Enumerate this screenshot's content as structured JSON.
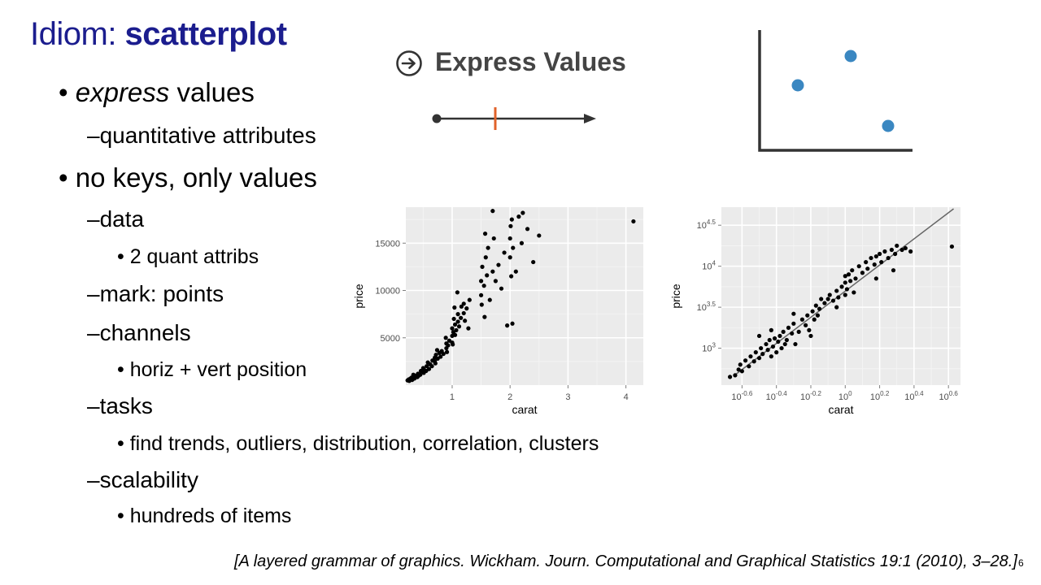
{
  "slide": {
    "title_prefix": "Idiom: ",
    "title_bold": "scatterplot",
    "bullets": [
      {
        "emph": "express",
        "rest": " values"
      },
      {
        "text": "no keys, only values"
      }
    ],
    "sub": {
      "quant": "–quantitative attributes",
      "data": "–data",
      "data_item": "• 2 quant attribs",
      "mark": "–mark: points",
      "channels": "–channels",
      "channels_item": "• horiz + vert position",
      "tasks": "–tasks",
      "tasks_item": "• find trends, outliers, distribution, correlation, clusters",
      "scalability": "–scalability",
      "scalability_item": "• hundreds of items"
    },
    "bullet_glyph": "•",
    "express_heading": "Express Values",
    "citation": "[A layered grammar of graphics. Wickham. Journ. Computational and Graphical Statistics 19:1 (2010), 3–28.]",
    "page_number": "6"
  },
  "colors": {
    "title": "#1b1d8e",
    "accent_orange": "#e0622a",
    "dot_blue": "#3a87c1",
    "panel_bg": "#ebebeb",
    "axis_dark": "#333333"
  },
  "icons": [
    "arrow-circle-right-icon"
  ],
  "chart_data": [
    {
      "type": "scatter",
      "xlabel": "carat",
      "ylabel": "price",
      "xlim": [
        0.2,
        4.3
      ],
      "ylim": [
        0,
        18800
      ],
      "x_ticks": [
        "1",
        "2",
        "3",
        "4"
      ],
      "y_ticks": [
        "5000",
        "10000",
        "15000"
      ],
      "grid": true,
      "points": [
        [
          0.23,
          500
        ],
        [
          0.25,
          600
        ],
        [
          0.26,
          450
        ],
        [
          0.28,
          700
        ],
        [
          0.3,
          650
        ],
        [
          0.3,
          800
        ],
        [
          0.31,
          550
        ],
        [
          0.33,
          900
        ],
        [
          0.35,
          700
        ],
        [
          0.36,
          1000
        ],
        [
          0.4,
          850
        ],
        [
          0.41,
          1200
        ],
        [
          0.42,
          1000
        ],
        [
          0.45,
          1100
        ],
        [
          0.5,
          1400
        ],
        [
          0.5,
          1800
        ],
        [
          0.51,
          1300
        ],
        [
          0.52,
          1600
        ],
        [
          0.55,
          1500
        ],
        [
          0.56,
          2000
        ],
        [
          0.6,
          1700
        ],
        [
          0.62,
          2200
        ],
        [
          0.65,
          2000
        ],
        [
          0.7,
          2500
        ],
        [
          0.7,
          2900
        ],
        [
          0.71,
          2300
        ],
        [
          0.72,
          3200
        ],
        [
          0.75,
          2800
        ],
        [
          0.78,
          3400
        ],
        [
          0.8,
          3000
        ],
        [
          0.82,
          3600
        ],
        [
          0.85,
          3300
        ],
        [
          0.9,
          3900
        ],
        [
          0.9,
          4400
        ],
        [
          0.91,
          3500
        ],
        [
          0.93,
          4200
        ],
        [
          0.95,
          4700
        ],
        [
          1.0,
          4500
        ],
        [
          1.0,
          5200
        ],
        [
          1.0,
          6000
        ],
        [
          1.01,
          4300
        ],
        [
          1.02,
          5600
        ],
        [
          1.03,
          7000
        ],
        [
          1.05,
          5300
        ],
        [
          1.05,
          6400
        ],
        [
          1.07,
          5800
        ],
        [
          1.1,
          6700
        ],
        [
          1.1,
          7500
        ],
        [
          1.12,
          6200
        ],
        [
          1.15,
          7100
        ],
        [
          1.2,
          7600
        ],
        [
          1.2,
          8600
        ],
        [
          1.22,
          6800
        ],
        [
          1.25,
          8100
        ],
        [
          1.3,
          9000
        ],
        [
          1.5,
          9500
        ],
        [
          1.5,
          11000
        ],
        [
          1.51,
          8500
        ],
        [
          1.52,
          12500
        ],
        [
          1.55,
          10500
        ],
        [
          1.56,
          7200
        ],
        [
          1.58,
          13500
        ],
        [
          1.6,
          11600
        ],
        [
          1.62,
          14500
        ],
        [
          1.65,
          9000
        ],
        [
          1.7,
          12000
        ],
        [
          1.72,
          15500
        ],
        [
          1.75,
          11000
        ],
        [
          1.8,
          12700
        ],
        [
          1.85,
          10200
        ],
        [
          1.9,
          14000
        ],
        [
          2.0,
          13500
        ],
        [
          2.0,
          15500
        ],
        [
          2.01,
          16800
        ],
        [
          2.02,
          11500
        ],
        [
          2.03,
          17500
        ],
        [
          2.05,
          14500
        ],
        [
          2.1,
          12000
        ],
        [
          2.15,
          17800
        ],
        [
          2.2,
          15000
        ],
        [
          2.3,
          16500
        ],
        [
          2.4,
          13000
        ],
        [
          2.5,
          15800
        ],
        [
          1.7,
          18400
        ],
        [
          0.33,
          1100
        ],
        [
          0.38,
          900
        ],
        [
          0.46,
          1500
        ],
        [
          0.58,
          2400
        ],
        [
          0.66,
          2600
        ],
        [
          0.74,
          3700
        ],
        [
          1.04,
          8200
        ],
        [
          1.16,
          8300
        ],
        [
          1.57,
          16000
        ],
        [
          1.95,
          6300
        ],
        [
          2.04,
          6500
        ],
        [
          2.22,
          18200
        ],
        [
          0.89,
          5000
        ],
        [
          1.28,
          6000
        ],
        [
          1.09,
          9800
        ],
        [
          4.13,
          17300
        ]
      ]
    },
    {
      "type": "scatter",
      "xlabel": "carat",
      "ylabel": "price",
      "x_scale": "log10",
      "y_scale": "log10",
      "x_ticks": [
        "10^-0.6",
        "10^-0.4",
        "10^-0.2",
        "10^0",
        "10^0.2",
        "10^0.4",
        "10^0.6"
      ],
      "y_ticks": [
        "10^3",
        "10^3.5",
        "10^4",
        "10^4.5"
      ],
      "xlim_log10": [
        -0.72,
        0.67
      ],
      "ylim_log10": [
        2.55,
        4.72
      ],
      "grid": true,
      "trend_line": true,
      "points": [
        [
          -0.64,
          2.67
        ],
        [
          -0.62,
          2.74
        ],
        [
          -0.61,
          2.8
        ],
        [
          -0.6,
          2.72
        ],
        [
          -0.58,
          2.85
        ],
        [
          -0.56,
          2.78
        ],
        [
          -0.55,
          2.9
        ],
        [
          -0.53,
          2.84
        ],
        [
          -0.52,
          2.95
        ],
        [
          -0.5,
          2.88
        ],
        [
          -0.49,
          3.0
        ],
        [
          -0.48,
          2.93
        ],
        [
          -0.46,
          3.05
        ],
        [
          -0.45,
          2.98
        ],
        [
          -0.44,
          3.1
        ],
        [
          -0.43,
          2.9
        ],
        [
          -0.42,
          3.02
        ],
        [
          -0.41,
          3.12
        ],
        [
          -0.4,
          2.95
        ],
        [
          -0.39,
          3.08
        ],
        [
          -0.38,
          3.15
        ],
        [
          -0.37,
          3.0
        ],
        [
          -0.36,
          3.2
        ],
        [
          -0.35,
          3.05
        ],
        [
          -0.34,
          3.1
        ],
        [
          -0.33,
          3.25
        ],
        [
          -0.31,
          3.18
        ],
        [
          -0.3,
          3.3
        ],
        [
          -0.29,
          3.05
        ],
        [
          -0.27,
          3.2
        ],
        [
          -0.25,
          3.35
        ],
        [
          -0.23,
          3.28
        ],
        [
          -0.22,
          3.4
        ],
        [
          -0.21,
          3.22
        ],
        [
          -0.19,
          3.45
        ],
        [
          -0.18,
          3.35
        ],
        [
          -0.17,
          3.52
        ],
        [
          -0.16,
          3.4
        ],
        [
          -0.15,
          3.48
        ],
        [
          -0.14,
          3.6
        ],
        [
          -0.12,
          3.55
        ],
        [
          -0.1,
          3.6
        ],
        [
          -0.09,
          3.65
        ],
        [
          -0.07,
          3.58
        ],
        [
          -0.05,
          3.7
        ],
        [
          -0.04,
          3.62
        ],
        [
          -0.02,
          3.75
        ],
        [
          0.0,
          3.65
        ],
        [
          0.0,
          3.8
        ],
        [
          0.0,
          3.88
        ],
        [
          0.01,
          3.72
        ],
        [
          0.02,
          3.9
        ],
        [
          0.03,
          3.82
        ],
        [
          0.04,
          3.95
        ],
        [
          0.06,
          3.85
        ],
        [
          0.08,
          4.0
        ],
        [
          0.1,
          3.92
        ],
        [
          0.12,
          4.05
        ],
        [
          0.13,
          3.97
        ],
        [
          0.15,
          4.1
        ],
        [
          0.17,
          4.02
        ],
        [
          0.18,
          4.12
        ],
        [
          0.2,
          4.15
        ],
        [
          0.21,
          4.05
        ],
        [
          0.23,
          4.18
        ],
        [
          0.25,
          4.1
        ],
        [
          0.27,
          4.2
        ],
        [
          0.29,
          4.15
        ],
        [
          0.3,
          4.25
        ],
        [
          0.33,
          4.2
        ],
        [
          0.35,
          4.22
        ],
        [
          0.38,
          4.18
        ],
        [
          -0.5,
          3.15
        ],
        [
          -0.43,
          3.22
        ],
        [
          -0.3,
          3.42
        ],
        [
          -0.2,
          3.15
        ],
        [
          -0.05,
          3.5
        ],
        [
          0.05,
          3.68
        ],
        [
          0.18,
          3.85
        ],
        [
          0.28,
          3.95
        ],
        [
          -0.67,
          2.65
        ],
        [
          0.62,
          4.24
        ]
      ]
    }
  ]
}
